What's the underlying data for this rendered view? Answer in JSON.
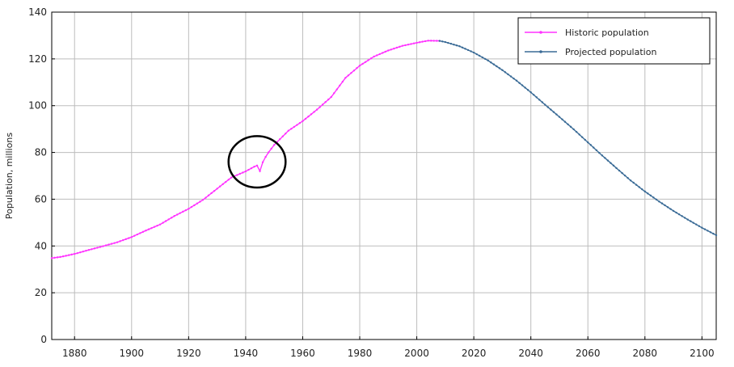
{
  "chart_data": {
    "type": "line",
    "title": "",
    "xlabel": "",
    "ylabel": "Population, millions",
    "xlim": [
      1872,
      2105
    ],
    "ylim": [
      0,
      140
    ],
    "xticks": [
      1880,
      1900,
      1920,
      1940,
      1960,
      1980,
      2000,
      2020,
      2040,
      2060,
      2080,
      2100
    ],
    "yticks": [
      0,
      20,
      40,
      60,
      80,
      100,
      120,
      140
    ],
    "grid": true,
    "legend_position": "top-right",
    "series": [
      {
        "name": "Historic population",
        "color": "#ff33ff",
        "marker": "dot",
        "points": [
          [
            1872,
            34.8
          ],
          [
            1875,
            35.3
          ],
          [
            1880,
            36.6
          ],
          [
            1885,
            38.3
          ],
          [
            1890,
            39.9
          ],
          [
            1895,
            41.6
          ],
          [
            1900,
            43.8
          ],
          [
            1905,
            46.6
          ],
          [
            1910,
            49.2
          ],
          [
            1915,
            52.8
          ],
          [
            1920,
            55.9
          ],
          [
            1925,
            59.7
          ],
          [
            1930,
            64.5
          ],
          [
            1935,
            69.3
          ],
          [
            1940,
            71.9
          ],
          [
            1943,
            73.9
          ],
          [
            1944,
            74.4
          ],
          [
            1945,
            72.0
          ],
          [
            1946,
            75.8
          ],
          [
            1947,
            78.1
          ],
          [
            1948,
            80.0
          ],
          [
            1950,
            83.2
          ],
          [
            1955,
            89.3
          ],
          [
            1960,
            93.4
          ],
          [
            1965,
            98.3
          ],
          [
            1970,
            103.7
          ],
          [
            1975,
            111.9
          ],
          [
            1980,
            117.1
          ],
          [
            1985,
            121.0
          ],
          [
            1990,
            123.6
          ],
          [
            1995,
            125.6
          ],
          [
            2000,
            126.9
          ],
          [
            2004,
            127.8
          ],
          [
            2008,
            127.7
          ]
        ]
      },
      {
        "name": "Projected population",
        "color": "#3a6b96",
        "marker": "dot",
        "points": [
          [
            2008,
            127.7
          ],
          [
            2010,
            127.2
          ],
          [
            2015,
            125.4
          ],
          [
            2020,
            122.7
          ],
          [
            2025,
            119.3
          ],
          [
            2030,
            115.2
          ],
          [
            2035,
            110.7
          ],
          [
            2040,
            105.7
          ],
          [
            2045,
            100.4
          ],
          [
            2050,
            95.2
          ],
          [
            2055,
            89.9
          ],
          [
            2060,
            84.3
          ],
          [
            2065,
            78.7
          ],
          [
            2070,
            73.3
          ],
          [
            2075,
            68.0
          ],
          [
            2080,
            63.3
          ],
          [
            2085,
            59.0
          ],
          [
            2090,
            55.0
          ],
          [
            2095,
            51.3
          ],
          [
            2100,
            47.8
          ],
          [
            2105,
            44.6
          ]
        ]
      }
    ],
    "annotations": [
      {
        "shape": "ellipse",
        "x": 1944,
        "y": 76,
        "rx_years": 10,
        "ry_units": 11,
        "color": "#000000"
      }
    ]
  }
}
